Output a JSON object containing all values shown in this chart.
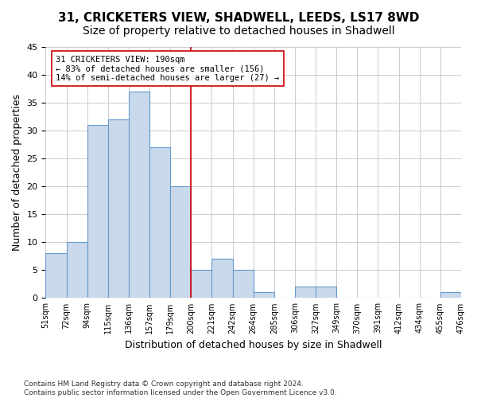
{
  "title1": "31, CRICKETERS VIEW, SHADWELL, LEEDS, LS17 8WD",
  "title2": "Size of property relative to detached houses in Shadwell",
  "xlabel": "Distribution of detached houses by size in Shadwell",
  "ylabel": "Number of detached properties",
  "footnote": "Contains HM Land Registry data © Crown copyright and database right 2024.\nContains public sector information licensed under the Open Government Licence v3.0.",
  "bin_labels": [
    "51sqm",
    "72sqm",
    "94sqm",
    "115sqm",
    "136sqm",
    "157sqm",
    "179sqm",
    "200sqm",
    "221sqm",
    "242sqm",
    "264sqm",
    "285sqm",
    "306sqm",
    "327sqm",
    "349sqm",
    "370sqm",
    "391sqm",
    "412sqm",
    "434sqm",
    "455sqm",
    "476sqm"
  ],
  "bar_values": [
    8,
    10,
    31,
    32,
    37,
    27,
    20,
    5,
    7,
    5,
    1,
    0,
    2,
    2,
    0,
    0,
    0,
    0,
    0,
    1
  ],
  "bar_color": "#c9d9ec",
  "bar_edge_color": "#6699cc",
  "vline_x": 7.0,
  "vline_color": "#cc0000",
  "annotation_text": "31 CRICKETERS VIEW: 190sqm\n← 83% of detached houses are smaller (156)\n14% of semi-detached houses are larger (27) →",
  "annotation_box_color": "#ffffff",
  "annotation_box_edge_color": "#cc0000",
  "ylim": [
    0,
    45
  ],
  "yticks": [
    0,
    5,
    10,
    15,
    20,
    25,
    30,
    35,
    40,
    45
  ],
  "background_color": "#ffffff",
  "grid_color": "#cccccc",
  "title1_fontsize": 11,
  "title2_fontsize": 10,
  "xlabel_fontsize": 9,
  "ylabel_fontsize": 9,
  "annotation_fontsize": 7.5
}
